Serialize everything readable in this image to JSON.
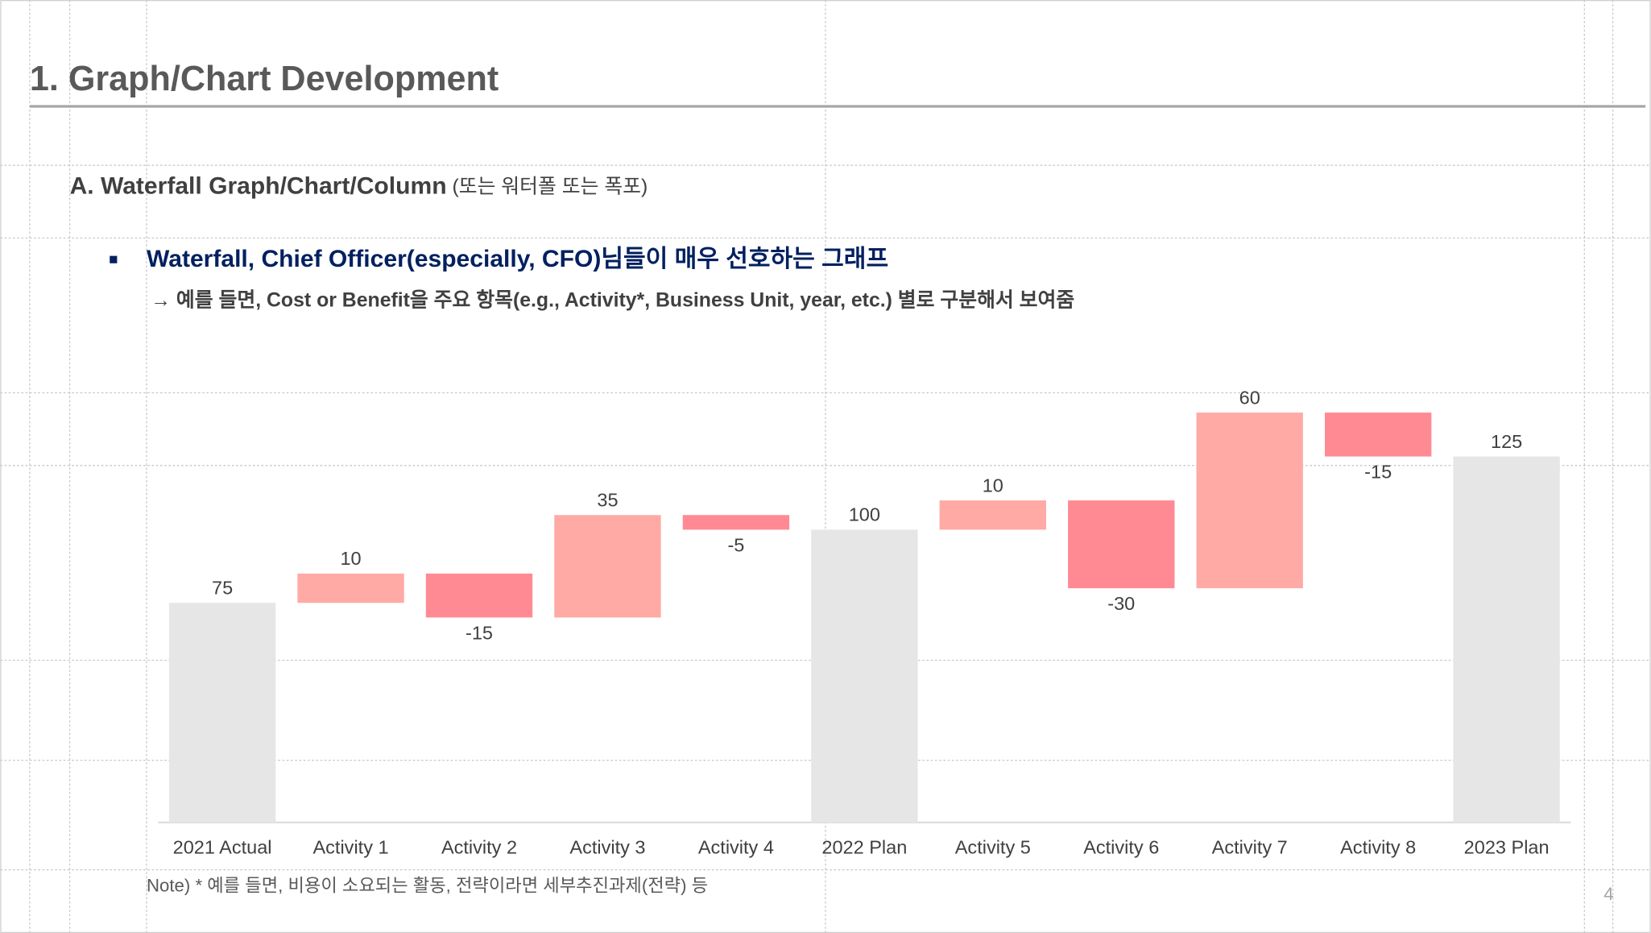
{
  "slide": {
    "title": "1. Graph/Chart Development",
    "section": "A. Waterfall Graph/Chart/Column",
    "section_note": " (또는 워터폴 또는 폭포)",
    "bullet": "Waterfall, Chief Officer(especially, CFO)님들이 매우 선호하는 그래프",
    "bullet_detail": "→ 예를 들면, Cost or Benefit을 주요 항목(e.g., Activity*, Business Unit, year, etc.) 별로 구분해서 보여줌",
    "note": "Note) * 예를 들면, 비용이 소요되는 활동, 전략이라면 세부추진과제(전략) 등",
    "page_number": "4"
  },
  "chart_data": {
    "type": "waterfall",
    "categories": [
      "2021 Actual",
      "Activity 1",
      "Activity 2",
      "Activity 3",
      "Activity 4",
      "2022 Plan",
      "Activity 5",
      "Activity 6",
      "Activity 7",
      "Activity 8",
      "2023 Plan"
    ],
    "values": [
      75,
      10,
      -15,
      35,
      -5,
      100,
      10,
      -30,
      60,
      -15,
      125
    ],
    "total_color": "#e6e6e6",
    "increase_color": "#ffaaa5",
    "decrease_color": "#ff8a93",
    "ylim": [
      0,
      150
    ],
    "grid": false
  }
}
